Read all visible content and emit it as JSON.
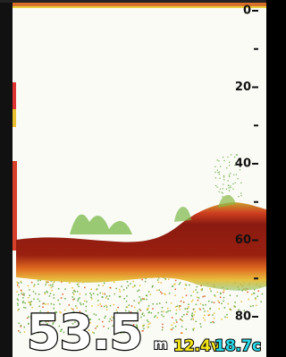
{
  "depth_scale": {
    "labels": [
      "0",
      "20",
      "40",
      "60",
      "80"
    ]
  },
  "readout": {
    "depth": "53.5",
    "unit": "m",
    "voltage": "12.4v",
    "temperature": "18.7c"
  }
}
